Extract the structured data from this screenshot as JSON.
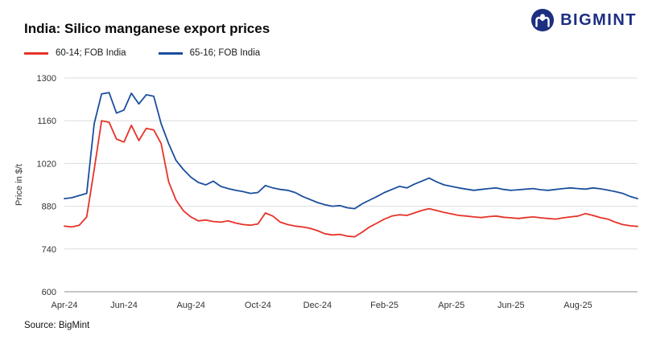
{
  "header": {
    "title": "India: Silico manganese export prices",
    "logo_text": "BIGMINT",
    "logo_color": "#1d2f80"
  },
  "legend": [
    {
      "label": "60-14; FOB India",
      "color": "#e63329"
    },
    {
      "label": "65-16; FOB India",
      "color": "#1b4f9e"
    }
  ],
  "source": "Source: BigMint",
  "chart_data": {
    "type": "line",
    "title": "India: Silico manganese export prices",
    "xlabel": "",
    "ylabel": "Price in $/t",
    "ylim": [
      600,
      1300
    ],
    "yticks": [
      600,
      740,
      880,
      1020,
      1160,
      1300
    ],
    "grid": "horizontal",
    "legend_position": "top-left",
    "xticks": [
      {
        "label": "Apr-24",
        "index": 0
      },
      {
        "label": "Jun-24",
        "index": 8
      },
      {
        "label": "Aug-24",
        "index": 17
      },
      {
        "label": "Oct-24",
        "index": 26
      },
      {
        "label": "Dec-24",
        "index": 34
      },
      {
        "label": "Feb-25",
        "index": 43
      },
      {
        "label": "Apr-25",
        "index": 52
      },
      {
        "label": "Jun-25",
        "index": 60
      },
      {
        "label": "Aug-25",
        "index": 69
      }
    ],
    "x_unit": "weekly observations, Apr-24 to Sep-25",
    "series": [
      {
        "id": "60-14",
        "name": "60-14; FOB India",
        "color": "#e63329",
        "values": [
          815,
          812,
          818,
          845,
          1000,
          1160,
          1155,
          1100,
          1090,
          1145,
          1095,
          1135,
          1130,
          1085,
          960,
          900,
          865,
          845,
          832,
          835,
          830,
          828,
          832,
          825,
          820,
          818,
          822,
          858,
          848,
          828,
          820,
          815,
          812,
          808,
          800,
          790,
          786,
          788,
          782,
          780,
          795,
          812,
          825,
          838,
          848,
          852,
          850,
          858,
          866,
          872,
          866,
          860,
          855,
          850,
          848,
          845,
          843,
          846,
          848,
          844,
          842,
          840,
          843,
          845,
          842,
          840,
          838,
          842,
          845,
          848,
          856,
          850,
          843,
          838,
          828,
          820,
          816,
          814
        ]
      },
      {
        "id": "65-16",
        "name": "65-16; FOB India",
        "color": "#1b4f9e",
        "values": [
          905,
          908,
          915,
          922,
          1150,
          1248,
          1252,
          1185,
          1195,
          1250,
          1215,
          1245,
          1240,
          1150,
          1085,
          1030,
          1000,
          975,
          958,
          950,
          962,
          945,
          938,
          932,
          928,
          922,
          925,
          948,
          940,
          935,
          932,
          925,
          912,
          902,
          892,
          885,
          880,
          882,
          875,
          872,
          888,
          900,
          912,
          925,
          935,
          945,
          940,
          952,
          962,
          972,
          960,
          950,
          945,
          940,
          936,
          932,
          935,
          938,
          940,
          935,
          932,
          934,
          936,
          938,
          934,
          932,
          935,
          938,
          940,
          938,
          936,
          940,
          937,
          933,
          928,
          922,
          912,
          905
        ]
      }
    ]
  }
}
